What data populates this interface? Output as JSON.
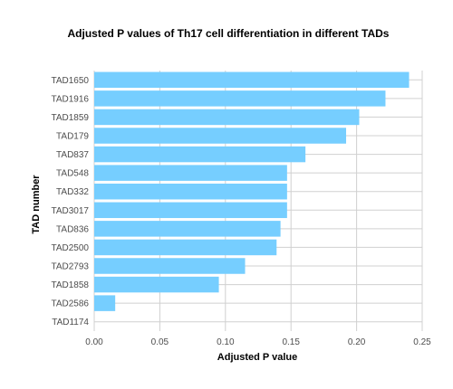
{
  "chart_data": {
    "type": "bar",
    "orientation": "horizontal",
    "title": "Adjusted P values of Th17 cell differentiation in different TADs",
    "xlabel": "Adjusted P value",
    "ylabel": "TAD number",
    "xlim": [
      0,
      0.25
    ],
    "x_ticks": [
      "0.00",
      "0.05",
      "0.10",
      "0.15",
      "0.20",
      "0.25"
    ],
    "categories": [
      "TAD1650",
      "TAD1916",
      "TAD1859",
      "TAD179",
      "TAD837",
      "TAD548",
      "TAD332",
      "TAD3017",
      "TAD836",
      "TAD2500",
      "TAD2793",
      "TAD1858",
      "TAD2586",
      "TAD1174"
    ],
    "values": [
      0.24,
      0.222,
      0.202,
      0.192,
      0.161,
      0.147,
      0.147,
      0.147,
      0.142,
      0.139,
      0.115,
      0.095,
      0.016,
      0.0
    ],
    "bar_color": "#76CEFF",
    "grid": true,
    "legend": "none"
  }
}
